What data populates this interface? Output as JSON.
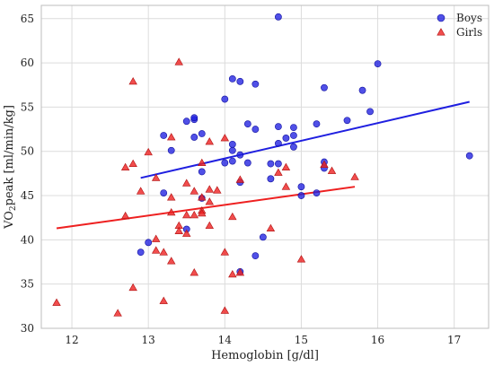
{
  "chart_data": {
    "type": "scatter",
    "xlabel": "Hemoglobin [g/dl]",
    "ylabel": "VO2peak [ml/min/kg]",
    "xlim": [
      11.6,
      17.45
    ],
    "ylim": [
      30,
      66.5
    ],
    "xticks": [
      12,
      13,
      14,
      15,
      16,
      17
    ],
    "yticks": [
      30,
      35,
      40,
      45,
      50,
      55,
      60,
      65
    ],
    "grid": true,
    "legend_position": "top-right",
    "series": [
      {
        "name": "Boys",
        "marker": "circle",
        "color": "#1f1fe0",
        "points": [
          [
            12.9,
            38.6
          ],
          [
            13.0,
            39.7
          ],
          [
            13.2,
            45.3
          ],
          [
            13.2,
            51.8
          ],
          [
            13.3,
            50.1
          ],
          [
            13.5,
            41.2
          ],
          [
            13.5,
            53.4
          ],
          [
            13.6,
            53.6
          ],
          [
            13.6,
            53.8
          ],
          [
            13.6,
            51.6
          ],
          [
            13.7,
            47.7
          ],
          [
            13.7,
            44.7
          ],
          [
            13.7,
            52.0
          ],
          [
            14.0,
            55.9
          ],
          [
            14.0,
            48.7
          ],
          [
            14.1,
            50.8
          ],
          [
            14.1,
            50.1
          ],
          [
            14.1,
            58.2
          ],
          [
            14.1,
            48.9
          ],
          [
            14.2,
            57.9
          ],
          [
            14.2,
            46.5
          ],
          [
            14.2,
            49.6
          ],
          [
            14.2,
            36.4
          ],
          [
            14.3,
            53.1
          ],
          [
            14.3,
            48.7
          ],
          [
            14.4,
            57.6
          ],
          [
            14.4,
            52.5
          ],
          [
            14.4,
            38.2
          ],
          [
            14.5,
            40.3
          ],
          [
            14.6,
            46.9
          ],
          [
            14.6,
            48.6
          ],
          [
            14.7,
            65.2
          ],
          [
            14.7,
            52.8
          ],
          [
            14.7,
            48.6
          ],
          [
            14.7,
            50.9
          ],
          [
            14.8,
            51.5
          ],
          [
            14.9,
            52.7
          ],
          [
            14.9,
            50.5
          ],
          [
            14.9,
            51.8
          ],
          [
            15.0,
            46.0
          ],
          [
            15.0,
            45.0
          ],
          [
            15.2,
            45.3
          ],
          [
            15.2,
            53.1
          ],
          [
            15.3,
            57.2
          ],
          [
            15.3,
            48.8
          ],
          [
            15.3,
            48.1
          ],
          [
            15.6,
            53.5
          ],
          [
            15.8,
            56.9
          ],
          [
            15.9,
            54.5
          ],
          [
            16.0,
            59.9
          ],
          [
            17.2,
            49.5
          ]
        ],
        "fit": {
          "x": [
            12.9,
            17.2
          ],
          "y": [
            47.0,
            55.6
          ]
        }
      },
      {
        "name": "Girls",
        "marker": "triangle",
        "color": "#ee2020",
        "points": [
          [
            11.8,
            32.9
          ],
          [
            12.6,
            31.7
          ],
          [
            12.7,
            42.7
          ],
          [
            12.7,
            48.2
          ],
          [
            12.8,
            34.6
          ],
          [
            12.8,
            48.6
          ],
          [
            12.8,
            57.9
          ],
          [
            12.9,
            45.5
          ],
          [
            13.0,
            49.9
          ],
          [
            13.1,
            40.1
          ],
          [
            13.1,
            38.8
          ],
          [
            13.1,
            47.0
          ],
          [
            13.2,
            38.6
          ],
          [
            13.2,
            33.1
          ],
          [
            13.3,
            37.6
          ],
          [
            13.3,
            44.8
          ],
          [
            13.3,
            43.1
          ],
          [
            13.3,
            51.6
          ],
          [
            13.4,
            41.6
          ],
          [
            13.4,
            41.0
          ],
          [
            13.4,
            60.1
          ],
          [
            13.5,
            42.8
          ],
          [
            13.5,
            46.4
          ],
          [
            13.5,
            40.7
          ],
          [
            13.6,
            45.5
          ],
          [
            13.6,
            42.8
          ],
          [
            13.6,
            36.3
          ],
          [
            13.7,
            43.3
          ],
          [
            13.7,
            43.0
          ],
          [
            13.7,
            44.8
          ],
          [
            13.7,
            48.7
          ],
          [
            13.8,
            41.6
          ],
          [
            13.8,
            44.3
          ],
          [
            13.8,
            45.7
          ],
          [
            13.8,
            51.1
          ],
          [
            13.9,
            45.6
          ],
          [
            14.0,
            32.0
          ],
          [
            14.0,
            38.6
          ],
          [
            14.0,
            51.5
          ],
          [
            14.1,
            42.6
          ],
          [
            14.1,
            36.1
          ],
          [
            14.2,
            46.8
          ],
          [
            14.2,
            36.3
          ],
          [
            14.6,
            41.3
          ],
          [
            14.7,
            47.6
          ],
          [
            14.8,
            46.0
          ],
          [
            14.8,
            48.2
          ],
          [
            15.0,
            37.8
          ],
          [
            15.3,
            48.5
          ],
          [
            15.4,
            47.8
          ],
          [
            15.7,
            47.1
          ]
        ],
        "fit": {
          "x": [
            11.8,
            15.7
          ],
          "y": [
            41.3,
            46.0
          ]
        }
      }
    ]
  }
}
